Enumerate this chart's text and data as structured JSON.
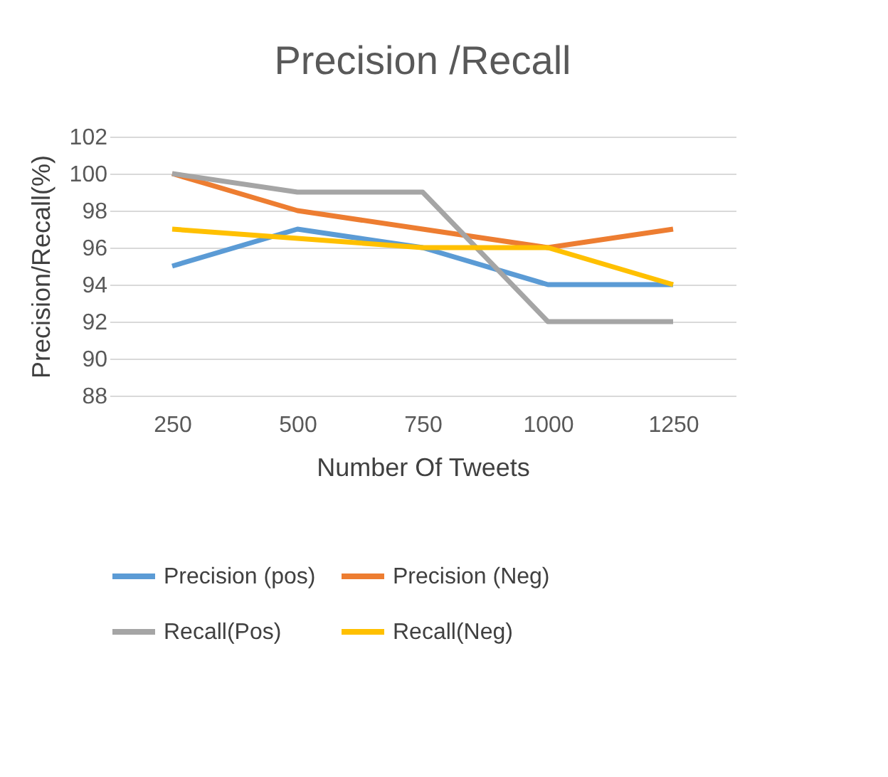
{
  "chart_data": {
    "type": "line",
    "title": "Precision /Recall",
    "xlabel": "Number Of Tweets",
    "ylabel": "Precision/Recall(%)",
    "categories": [
      "250",
      "500",
      "750",
      "1000",
      "1250"
    ],
    "series": [
      {
        "name": "Precision (pos)",
        "color": "#5b9bd5",
        "values": [
          95,
          97,
          96,
          94,
          94
        ]
      },
      {
        "name": "Precision (Neg)",
        "color": "#ed7d31",
        "values": [
          100,
          98,
          97,
          96,
          97
        ]
      },
      {
        "name": "Recall(Pos)",
        "color": "#a5a5a5",
        "values": [
          100,
          99,
          99,
          92,
          92
        ]
      },
      {
        "name": "Recall(Neg)",
        "color": "#ffc000",
        "values": [
          97,
          96.5,
          96,
          96,
          94
        ]
      }
    ],
    "ylim": [
      88,
      102
    ],
    "yticks": [
      88,
      90,
      92,
      94,
      96,
      98,
      100,
      102
    ],
    "grid": "y",
    "legend": "bottom",
    "marker": "none",
    "line_style": "solid"
  }
}
